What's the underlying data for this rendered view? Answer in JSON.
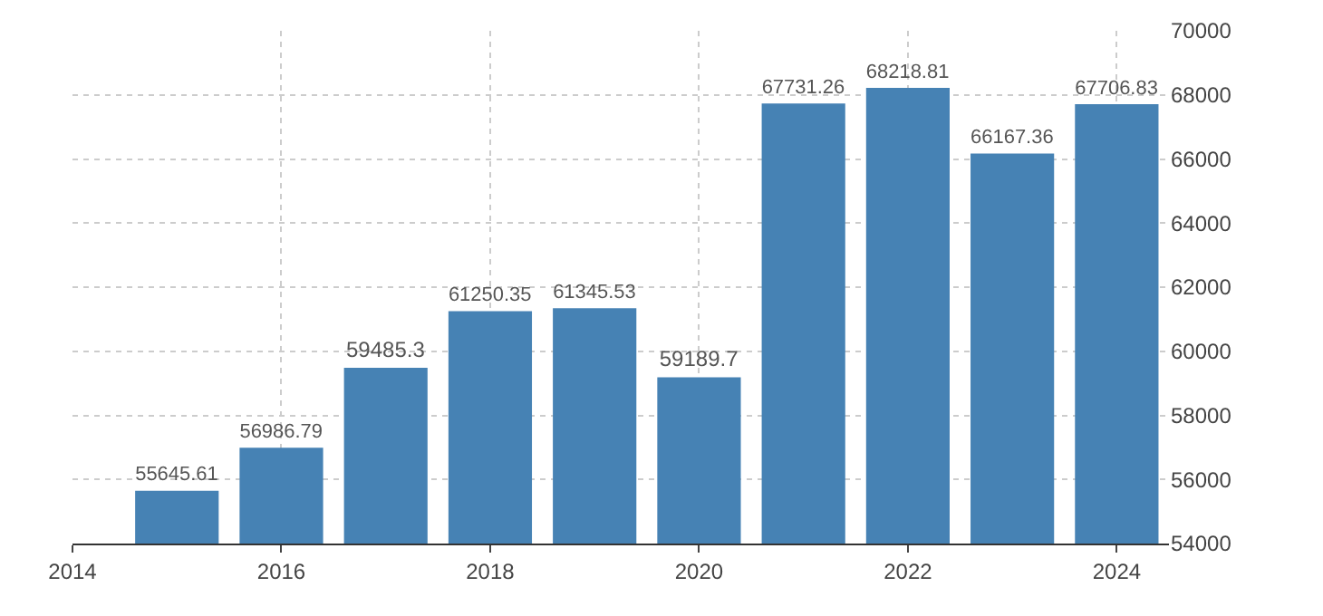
{
  "chart_data": {
    "type": "bar",
    "x": [
      2015,
      2016,
      2017,
      2018,
      2019,
      2020,
      2021,
      2022,
      2023,
      2024
    ],
    "values": [
      55645.61,
      56986.79,
      59485.3,
      61250.35,
      61345.53,
      59189.7,
      67731.26,
      68218.81,
      66167.36,
      67706.83
    ],
    "color": "#4682b4",
    "xlim": [
      2014,
      2024.5
    ],
    "xticks": [
      2014,
      2016,
      2018,
      2020,
      2022,
      2024
    ],
    "ylim": [
      54000,
      70000
    ],
    "yticks": [
      54000,
      56000,
      58000,
      60000,
      62000,
      64000,
      66000,
      68000,
      70000
    ],
    "grid": true,
    "data_labels": true
  }
}
